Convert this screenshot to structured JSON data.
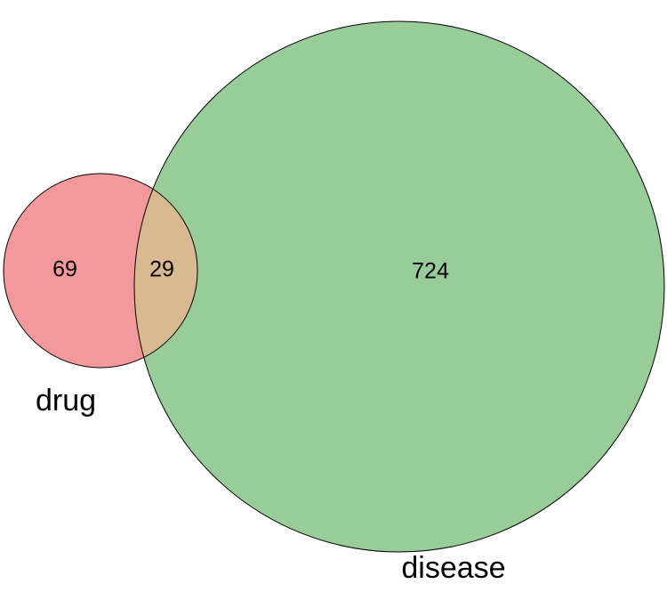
{
  "sets": [
    {
      "label": "drug"
    },
    {
      "label": "disease"
    }
  ],
  "regions": [
    {
      "value": 69
    },
    {
      "value": 29
    },
    {
      "value": 724
    }
  ]
}
